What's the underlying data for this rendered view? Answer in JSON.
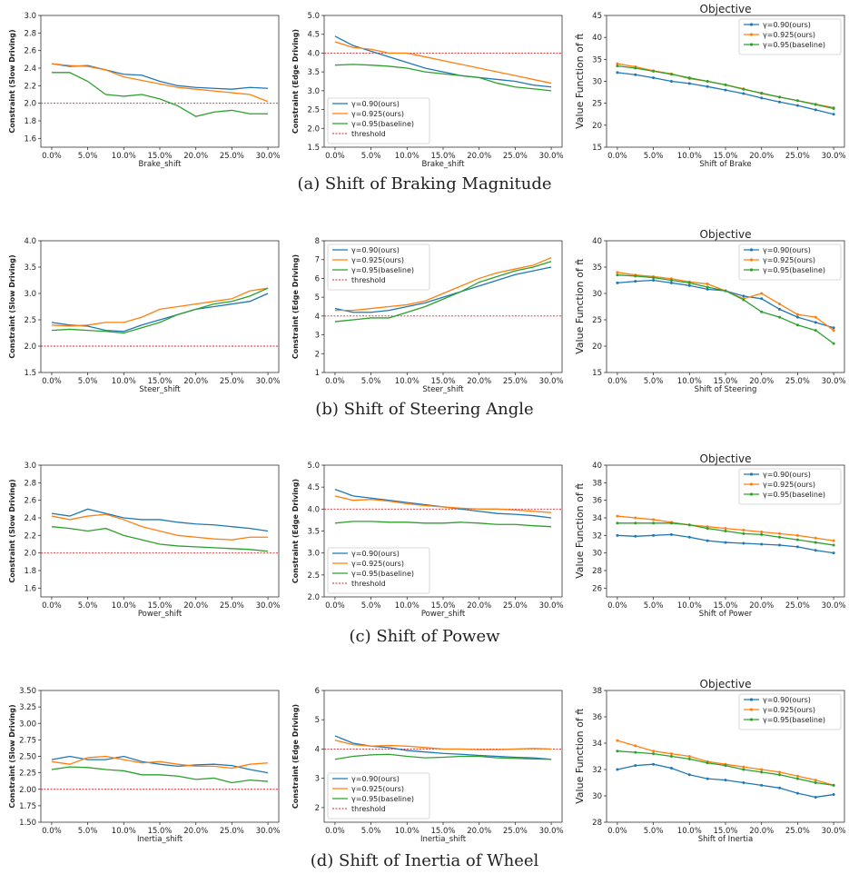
{
  "captions": [
    "(a) Shift of Braking Magnitude",
    "(b) Shift of Steering Angle",
    "(c) Shift of Powew",
    "(d) Shift of Inertia of Wheel"
  ],
  "x_ticks": [
    "0.0%",
    "5.0%",
    "10.0%",
    "15.0%",
    "20.0%",
    "25.0%",
    "30.0%"
  ],
  "colors": {
    "blue": "#1f77b4",
    "orange": "#ff7f0e",
    "green": "#2ca02c",
    "threshold": "#d62728"
  },
  "legend_labels": [
    "γ=0.90(ours)",
    "γ=0.925(ours)",
    "γ=0.95(baseline)",
    "threshold"
  ],
  "chart_data": [
    {
      "type": "line",
      "row": 0,
      "col": 0,
      "xlabel": "Brake_shift",
      "ylabel": "Constraint (Slow Driving)",
      "ylim": [
        1.5,
        3.0
      ],
      "yticks": [
        "1.6",
        "1.8",
        "2.0",
        "2.2",
        "2.4",
        "2.6",
        "2.8",
        "3.0"
      ],
      "threshold": 2.0,
      "legend": "none",
      "x": [
        0,
        2.5,
        5,
        7.5,
        10,
        12.5,
        15,
        17.5,
        20,
        22.5,
        25,
        27.5,
        30
      ],
      "series": [
        {
          "values": [
            2.45,
            2.42,
            2.43,
            2.38,
            2.33,
            2.32,
            2.25,
            2.2,
            2.18,
            2.17,
            2.16,
            2.18,
            2.17
          ]
        },
        {
          "values": [
            2.45,
            2.43,
            2.42,
            2.38,
            2.3,
            2.26,
            2.22,
            2.18,
            2.16,
            2.14,
            2.12,
            2.1,
            2.02
          ]
        },
        {
          "values": [
            2.35,
            2.35,
            2.25,
            2.1,
            2.08,
            2.1,
            2.05,
            1.97,
            1.85,
            1.9,
            1.92,
            1.88,
            1.88
          ]
        }
      ]
    },
    {
      "type": "line",
      "row": 0,
      "col": 1,
      "xlabel": "Brake_shift",
      "ylabel": "Constraint (Edge Driving)",
      "ylim": [
        1.5,
        5.0
      ],
      "yticks": [
        "1.5",
        "2.0",
        "2.5",
        "3.0",
        "3.5",
        "4.0",
        "4.5",
        "5.0"
      ],
      "threshold": 4.0,
      "legend": "bottom-left",
      "x": [
        0,
        2.5,
        5,
        7.5,
        10,
        12.5,
        15,
        17.5,
        20,
        22.5,
        25,
        27.5,
        30
      ],
      "series": [
        {
          "values": [
            4.45,
            4.2,
            4.05,
            3.9,
            3.75,
            3.6,
            3.5,
            3.4,
            3.35,
            3.3,
            3.25,
            3.15,
            3.1
          ]
        },
        {
          "values": [
            4.3,
            4.15,
            4.1,
            4.0,
            4.0,
            3.9,
            3.8,
            3.7,
            3.6,
            3.5,
            3.4,
            3.3,
            3.2
          ]
        },
        {
          "values": [
            3.68,
            3.7,
            3.68,
            3.65,
            3.6,
            3.5,
            3.45,
            3.4,
            3.35,
            3.2,
            3.1,
            3.05,
            3.0
          ]
        }
      ]
    },
    {
      "type": "line",
      "row": 0,
      "col": 2,
      "title": "Objective",
      "xlabel": "Shift of Brake",
      "ylabel": "Value Function of π̂",
      "ylim": [
        15,
        45
      ],
      "yticks": [
        "15",
        "20",
        "25",
        "30",
        "35",
        "40",
        "45"
      ],
      "markers": true,
      "legend": "top-right",
      "x": [
        0,
        2.5,
        5,
        7.5,
        10,
        12.5,
        15,
        17.5,
        20,
        22.5,
        25,
        27.5,
        30
      ],
      "series": [
        {
          "values": [
            32,
            31.5,
            30.8,
            30,
            29.5,
            28.8,
            28,
            27.2,
            26.2,
            25.3,
            24.5,
            23.5,
            22.5
          ]
        },
        {
          "values": [
            34,
            33.3,
            32.4,
            31.7,
            30.6,
            30,
            29.2,
            28.3,
            27.2,
            26.4,
            25.6,
            24.8,
            24
          ]
        },
        {
          "values": [
            33.5,
            33,
            32.3,
            31.6,
            30.8,
            30,
            29.2,
            28.2,
            27.3,
            26.4,
            25.6,
            24.7,
            23.8
          ]
        }
      ]
    },
    {
      "type": "line",
      "row": 1,
      "col": 0,
      "xlabel": "Steer_shift",
      "ylabel": "Constraint (Slow Driving)",
      "ylim": [
        1.5,
        4.0
      ],
      "yticks": [
        "1.5",
        "2.0",
        "2.5",
        "3.0",
        "3.5",
        "4.0"
      ],
      "threshold": 2.0,
      "legend": "none",
      "x": [
        0,
        2.5,
        5,
        7.5,
        10,
        12.5,
        15,
        17.5,
        20,
        22.5,
        25,
        27.5,
        30
      ],
      "series": [
        {
          "values": [
            2.45,
            2.4,
            2.38,
            2.3,
            2.28,
            2.4,
            2.5,
            2.6,
            2.7,
            2.75,
            2.8,
            2.85,
            3.0
          ]
        },
        {
          "values": [
            2.4,
            2.38,
            2.4,
            2.45,
            2.45,
            2.55,
            2.7,
            2.75,
            2.8,
            2.85,
            2.9,
            3.05,
            3.1
          ]
        },
        {
          "values": [
            2.3,
            2.32,
            2.3,
            2.28,
            2.25,
            2.35,
            2.45,
            2.6,
            2.7,
            2.8,
            2.85,
            2.95,
            3.1
          ]
        }
      ]
    },
    {
      "type": "line",
      "row": 1,
      "col": 1,
      "xlabel": "Steer_shift",
      "ylabel": "Constraint (Edge Driving)",
      "ylim": [
        1,
        8
      ],
      "yticks": [
        "1",
        "2",
        "3",
        "4",
        "5",
        "6",
        "7",
        "8"
      ],
      "threshold": 4.0,
      "legend": "top-left",
      "x": [
        0,
        2.5,
        5,
        7.5,
        10,
        12.5,
        15,
        17.5,
        20,
        22.5,
        25,
        27.5,
        30
      ],
      "series": [
        {
          "values": [
            4.4,
            4.2,
            4.2,
            4.3,
            4.5,
            4.7,
            5.0,
            5.3,
            5.6,
            5.9,
            6.2,
            6.4,
            6.6
          ]
        },
        {
          "values": [
            4.3,
            4.3,
            4.4,
            4.5,
            4.6,
            4.8,
            5.2,
            5.6,
            6.0,
            6.3,
            6.5,
            6.7,
            7.1
          ]
        },
        {
          "values": [
            3.7,
            3.8,
            3.9,
            3.9,
            4.2,
            4.5,
            4.9,
            5.3,
            5.8,
            6.1,
            6.4,
            6.6,
            6.9
          ]
        }
      ]
    },
    {
      "type": "line",
      "row": 1,
      "col": 2,
      "title": "Objective",
      "xlabel": "Shift of Steering",
      "ylabel": "Value Function of π̂",
      "ylim": [
        15,
        40
      ],
      "yticks": [
        "15",
        "20",
        "25",
        "30",
        "35",
        "40"
      ],
      "markers": true,
      "legend": "top-right",
      "x": [
        0,
        2.5,
        5,
        7.5,
        10,
        12.5,
        15,
        17.5,
        20,
        22.5,
        25,
        27.5,
        30
      ],
      "series": [
        {
          "values": [
            32,
            32.3,
            32.5,
            32,
            31.5,
            30.8,
            30.5,
            29.5,
            29,
            27,
            25.5,
            24.5,
            23.5
          ]
        },
        {
          "values": [
            34,
            33.5,
            33.2,
            32.8,
            32.2,
            31.8,
            30.5,
            29,
            30,
            28,
            26,
            25.5,
            23
          ]
        },
        {
          "values": [
            33.5,
            33.3,
            33,
            32.5,
            32,
            31.2,
            30.5,
            28.8,
            26.5,
            25.5,
            24,
            23,
            20.5
          ]
        }
      ]
    },
    {
      "type": "line",
      "row": 2,
      "col": 0,
      "xlabel": "Power_shift",
      "ylabel": "Constraint (Slow Driving)",
      "ylim": [
        1.5,
        3.0
      ],
      "yticks": [
        "1.6",
        "1.8",
        "2.0",
        "2.2",
        "2.4",
        "2.6",
        "2.8",
        "3.0"
      ],
      "threshold": 2.0,
      "legend": "none",
      "x": [
        0,
        2.5,
        5,
        7.5,
        10,
        12.5,
        15,
        17.5,
        20,
        22.5,
        25,
        27.5,
        30
      ],
      "series": [
        {
          "values": [
            2.45,
            2.42,
            2.5,
            2.45,
            2.4,
            2.38,
            2.38,
            2.35,
            2.33,
            2.32,
            2.3,
            2.28,
            2.25
          ]
        },
        {
          "values": [
            2.42,
            2.38,
            2.42,
            2.44,
            2.38,
            2.3,
            2.25,
            2.2,
            2.18,
            2.16,
            2.15,
            2.18,
            2.18
          ]
        },
        {
          "values": [
            2.3,
            2.28,
            2.25,
            2.28,
            2.2,
            2.15,
            2.1,
            2.08,
            2.07,
            2.06,
            2.05,
            2.04,
            2.02
          ]
        }
      ]
    },
    {
      "type": "line",
      "row": 2,
      "col": 1,
      "xlabel": "Power_shift",
      "ylabel": "Constraint (Edge Driving)",
      "ylim": [
        2.0,
        5.0
      ],
      "yticks": [
        "2.0",
        "2.5",
        "3.0",
        "3.5",
        "4.0",
        "4.5",
        "5.0"
      ],
      "threshold": 4.0,
      "legend": "bottom-left",
      "x": [
        0,
        2.5,
        5,
        7.5,
        10,
        12.5,
        15,
        17.5,
        20,
        22.5,
        25,
        27.5,
        30
      ],
      "series": [
        {
          "values": [
            4.45,
            4.3,
            4.25,
            4.2,
            4.15,
            4.1,
            4.05,
            4.0,
            3.95,
            3.9,
            3.88,
            3.85,
            3.8
          ]
        },
        {
          "values": [
            4.3,
            4.2,
            4.22,
            4.18,
            4.12,
            4.08,
            4.05,
            4.02,
            4.0,
            4.0,
            3.98,
            3.95,
            3.92
          ]
        },
        {
          "values": [
            3.68,
            3.72,
            3.72,
            3.7,
            3.7,
            3.68,
            3.68,
            3.7,
            3.68,
            3.65,
            3.65,
            3.62,
            3.6
          ]
        }
      ]
    },
    {
      "type": "line",
      "row": 2,
      "col": 2,
      "title": "Objective",
      "xlabel": "Shift of Power",
      "ylabel": "Value Function of π̂",
      "ylim": [
        25,
        40
      ],
      "yticks": [
        "26",
        "28",
        "30",
        "32",
        "34",
        "36",
        "38",
        "40"
      ],
      "markers": true,
      "legend": "top-right",
      "x": [
        0,
        2.5,
        5,
        7.5,
        10,
        12.5,
        15,
        17.5,
        20,
        22.5,
        25,
        27.5,
        30
      ],
      "series": [
        {
          "values": [
            32,
            31.9,
            32,
            32.1,
            31.8,
            31.4,
            31.2,
            31.1,
            31,
            30.9,
            30.7,
            30.3,
            30
          ]
        },
        {
          "values": [
            34.2,
            34,
            33.8,
            33.5,
            33.2,
            33,
            32.8,
            32.6,
            32.4,
            32.2,
            32,
            31.7,
            31.4
          ]
        },
        {
          "values": [
            33.4,
            33.4,
            33.4,
            33.4,
            33.2,
            32.8,
            32.5,
            32.2,
            32.1,
            31.8,
            31.5,
            31.2,
            30.9
          ]
        }
      ]
    },
    {
      "type": "line",
      "row": 3,
      "col": 0,
      "xlabel": "Inertia_shift",
      "ylabel": "Constraint (Slow Driving)",
      "ylim": [
        1.5,
        3.5
      ],
      "yticks": [
        "1.50",
        "1.75",
        "2.00",
        "2.25",
        "2.50",
        "2.75",
        "3.00",
        "3.25",
        "3.50"
      ],
      "threshold": 2.0,
      "legend": "none",
      "x": [
        0,
        2.5,
        5,
        7.5,
        10,
        12.5,
        15,
        17.5,
        20,
        22.5,
        25,
        27.5,
        30
      ],
      "series": [
        {
          "values": [
            2.45,
            2.5,
            2.45,
            2.45,
            2.5,
            2.42,
            2.38,
            2.35,
            2.37,
            2.38,
            2.36,
            2.3,
            2.25
          ]
        },
        {
          "values": [
            2.42,
            2.38,
            2.48,
            2.5,
            2.45,
            2.4,
            2.42,
            2.38,
            2.35,
            2.35,
            2.32,
            2.38,
            2.4
          ]
        },
        {
          "values": [
            2.3,
            2.34,
            2.33,
            2.3,
            2.28,
            2.22,
            2.22,
            2.2,
            2.15,
            2.17,
            2.1,
            2.14,
            2.12
          ]
        }
      ]
    },
    {
      "type": "line",
      "row": 3,
      "col": 1,
      "xlabel": "Inertia_shift",
      "ylabel": "Constraint (Edge Driving)",
      "ylim": [
        1.5,
        6.0
      ],
      "yticks": [
        "2",
        "3",
        "4",
        "5",
        "6"
      ],
      "threshold": 4.0,
      "legend": "bottom-left",
      "x": [
        0,
        2.5,
        5,
        7.5,
        10,
        12.5,
        15,
        17.5,
        20,
        22.5,
        25,
        27.5,
        30
      ],
      "series": [
        {
          "values": [
            4.45,
            4.2,
            4.1,
            4.05,
            3.95,
            3.9,
            3.85,
            3.82,
            3.78,
            3.75,
            3.72,
            3.7,
            3.65
          ]
        },
        {
          "values": [
            4.3,
            4.15,
            4.1,
            4.12,
            4.1,
            4.05,
            4.0,
            4.0,
            3.98,
            3.98,
            4.0,
            4.02,
            4.0
          ]
        },
        {
          "values": [
            3.65,
            3.75,
            3.8,
            3.82,
            3.75,
            3.7,
            3.72,
            3.75,
            3.75,
            3.7,
            3.68,
            3.66,
            3.65
          ]
        }
      ]
    },
    {
      "type": "line",
      "row": 3,
      "col": 2,
      "title": "Objective",
      "xlabel": "Shift of Inertia",
      "ylabel": "Value Function of π̂",
      "ylim": [
        28,
        38
      ],
      "yticks": [
        "28",
        "30",
        "32",
        "34",
        "36",
        "38"
      ],
      "markers": true,
      "legend": "top-right",
      "x": [
        0,
        2.5,
        5,
        7.5,
        10,
        12.5,
        15,
        17.5,
        20,
        22.5,
        25,
        27.5,
        30
      ],
      "series": [
        {
          "values": [
            32,
            32.3,
            32.4,
            32.1,
            31.6,
            31.3,
            31.2,
            31,
            30.8,
            30.6,
            30.2,
            29.9,
            30.1
          ]
        },
        {
          "values": [
            34.2,
            33.8,
            33.4,
            33.2,
            33,
            32.6,
            32.4,
            32.2,
            32,
            31.8,
            31.5,
            31.2,
            30.8
          ]
        },
        {
          "values": [
            33.4,
            33.3,
            33.2,
            33,
            32.8,
            32.5,
            32.3,
            32,
            31.8,
            31.6,
            31.3,
            31,
            30.8
          ]
        }
      ]
    }
  ]
}
